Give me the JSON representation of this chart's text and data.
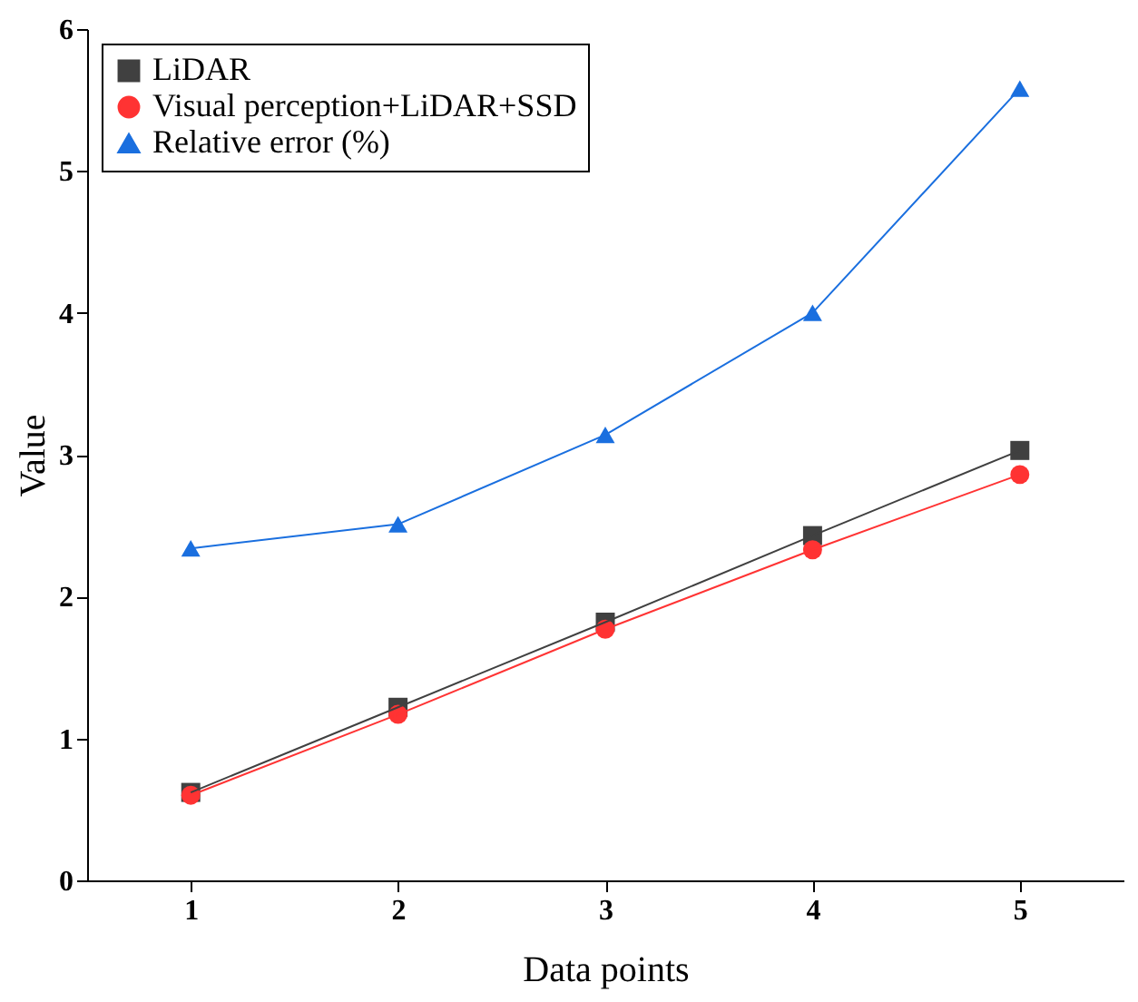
{
  "chart_data": {
    "type": "line",
    "xlabel": "Data points",
    "ylabel": "Value",
    "x": [
      1,
      2,
      3,
      4,
      5
    ],
    "series": [
      {
        "name": "LiDAR",
        "color": "#404040",
        "marker": "square",
        "values": [
          0.62,
          1.22,
          1.82,
          2.43,
          3.03
        ]
      },
      {
        "name": "Visual perception+LiDAR+SSD",
        "color": "#ff3333",
        "marker": "circle",
        "values": [
          0.6,
          1.17,
          1.77,
          2.33,
          2.86
        ]
      },
      {
        "name": "Relative error (%)",
        "color": "#1a6fdf",
        "marker": "triangle",
        "values": [
          2.34,
          2.51,
          3.14,
          4.0,
          5.58
        ]
      }
    ],
    "xlim": [
      0.5,
      5.5
    ],
    "xticks": [
      1,
      2,
      3,
      4,
      5
    ],
    "ylim": [
      0,
      6
    ],
    "yticks": [
      0,
      1,
      2,
      3,
      4,
      5,
      6
    ],
    "grid": false,
    "legend": "top left",
    "line_style": "solid"
  }
}
